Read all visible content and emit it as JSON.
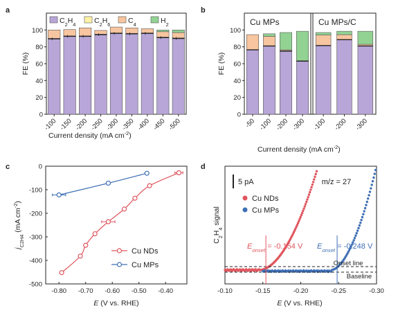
{
  "chart_data": [
    {
      "panel": "a",
      "type": "bar",
      "stacked": true,
      "categories": [
        "-100",
        "-150",
        "-200",
        "-250",
        "-300",
        "-350",
        "-400",
        "-450",
        "-500"
      ],
      "series": [
        {
          "name": "C2H4",
          "color": "#b8a6d8",
          "values": [
            89.5,
            92.5,
            92.5,
            94.5,
            96,
            95.5,
            96,
            91,
            90
          ]
        },
        {
          "name": "C2H6",
          "color": "#fff2a6",
          "values": [
            0.5,
            0.5,
            0.5,
            0.5,
            0.5,
            0.5,
            0.5,
            0.5,
            0.5
          ]
        },
        {
          "name": "C4",
          "color": "#f7c59f",
          "values": [
            10,
            7.5,
            9.5,
            4.5,
            7,
            6.5,
            5,
            6.5,
            6.5
          ]
        },
        {
          "name": "H2",
          "color": "#92d393",
          "values": [
            0,
            0,
            0,
            0,
            0,
            0,
            0,
            2,
            3
          ]
        }
      ],
      "legend": [
        {
          "series": "C2H4",
          "main": "C",
          "sub": "2",
          "main2": "H",
          "sub2": "4"
        },
        {
          "series": "C2H6",
          "main": "C",
          "sub": "2",
          "main2": "H",
          "sub2": "6"
        },
        {
          "series": "C4",
          "main": "C",
          "sub": "4",
          "main2": "",
          "sub2": ""
        },
        {
          "series": "H2",
          "main": "H",
          "sub": "2",
          "main2": "",
          "sub2": ""
        }
      ],
      "ylabel": "FE (%)",
      "xlabel": "Current density (mA cm",
      "xlabel_sup": "-2",
      "xlabel_end": ")",
      "ylim": [
        0,
        120
      ],
      "yticks": [
        0,
        20,
        40,
        60,
        80,
        100
      ],
      "legend_position": "top"
    },
    {
      "panel": "b",
      "type": "bar",
      "stacked": true,
      "groups": [
        {
          "name": "Cu MPs",
          "categories": [
            "-50",
            "-100",
            "-200",
            "-300"
          ],
          "series": [
            {
              "name": "C2H4",
              "values": [
                76.5,
                81,
                75,
                63
              ]
            },
            {
              "name": "C4",
              "values": [
                18,
                11.5,
                1.5,
                0.5
              ]
            },
            {
              "name": "H2",
              "values": [
                0,
                3,
                20.5,
                35
              ]
            }
          ]
        },
        {
          "name": "Cu MPs/C",
          "categories": [
            "-100",
            "-200",
            "-300"
          ],
          "series": [
            {
              "name": "C2H4",
              "values": [
                81.5,
                88.5,
                81
              ]
            },
            {
              "name": "C4",
              "values": [
                12.5,
                6,
                2
              ]
            },
            {
              "name": "H2",
              "values": [
                3,
                4,
                15.5
              ]
            }
          ]
        }
      ],
      "ylabel": "FE (%)",
      "xlabel": "Current density (mA cm",
      "xlabel_sup": "-2",
      "xlabel_end": ")",
      "ylim": [
        0,
        120
      ],
      "yticks": [
        0,
        20,
        40,
        60,
        80,
        100
      ]
    },
    {
      "panel": "c",
      "type": "line",
      "series": [
        {
          "name": "Cu NDs",
          "color": "#e0555d",
          "points": [
            [
              -0.79,
              -452
            ],
            [
              -0.72,
              -382
            ],
            [
              -0.7,
              -336
            ],
            [
              -0.665,
              -287
            ],
            [
              -0.615,
              -236
            ],
            [
              -0.555,
              -182
            ],
            [
              -0.515,
              -136
            ],
            [
              -0.46,
              -83
            ],
            [
              -0.35,
              -28
            ]
          ],
          "xerr": [
            0,
            0,
            0,
            0,
            0.025,
            0,
            0,
            0,
            0.015
          ]
        },
        {
          "name": "Cu MPs",
          "color": "#3f6fb5",
          "points": [
            [
              -0.8,
              -122
            ],
            [
              -0.615,
              -72
            ],
            [
              -0.47,
              -30
            ]
          ],
          "xerr": [
            0.025,
            0,
            0
          ]
        }
      ],
      "ylabel": "j",
      "ylabel_sub": "C2H4",
      "ylabel_unit": " (mA cm",
      "ylabel_sup": "-2",
      "ylabel_end": ")",
      "xlabel": "E",
      "xlabel_rest": " (V vs. RHE)",
      "xlim": [
        -0.85,
        -0.32
      ],
      "ylim": [
        -500,
        0
      ],
      "xticks": [
        "-0.80",
        "-0.70",
        "-0.60",
        "-0.50",
        "-0.40"
      ],
      "yticks": [
        "0",
        "-100",
        "-200",
        "-300",
        "-400",
        "-500"
      ],
      "legend_position": "bottom-right"
    },
    {
      "panel": "d",
      "type": "scatter",
      "series": [
        {
          "name": "Cu NDs",
          "color": "#e0555d",
          "onset": -0.154
        },
        {
          "name": "Cu MPs",
          "color": "#3f6fb5",
          "onset": -0.248
        }
      ],
      "ylabel": "C",
      "ylabel_sub": "2",
      "ylabel_mid": "H",
      "ylabel_sub2": "4",
      "ylabel_end": " signal",
      "xlabel": "E",
      "xlabel_rest": " (V vs. RHE)",
      "xlim": [
        -0.1,
        -0.3
      ],
      "xticks": [
        "-0.10",
        "-0.15",
        "-0.20",
        "-0.25",
        "-0.30"
      ],
      "scale_bar": "5 pA",
      "mz": "m/z = 27",
      "onset_line": "Onset line",
      "baseline": "Baseline",
      "onset_texts": [
        {
          "series": "Cu NDs",
          "E": "E",
          "sub": "onset",
          "val": " = -0.154 V"
        },
        {
          "series": "Cu MPs",
          "E": "E",
          "sub": "onset",
          "val": " = -0.248 V"
        }
      ],
      "legend_position": "top-left"
    }
  ],
  "panel_labels": [
    "a",
    "b",
    "c",
    "d"
  ]
}
